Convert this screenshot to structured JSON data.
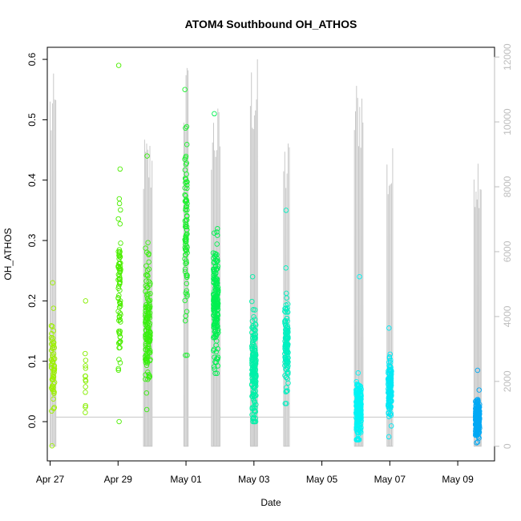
{
  "chart_data": {
    "type": "scatter",
    "title": "ATOM4 Southbound OH_ATHOS",
    "xlabel": "Date",
    "ylabel": "OH_ATHOS",
    "x_axis": {
      "type": "date",
      "range": [
        "2017-04-26T22:00",
        "2017-05-10T02:00"
      ],
      "ticks": [
        {
          "value": "2017-04-27",
          "label": "Apr 27"
        },
        {
          "value": "2017-04-29",
          "label": "Apr 29"
        },
        {
          "value": "2017-05-01",
          "label": "May 01"
        },
        {
          "value": "2017-05-03",
          "label": "May 03"
        },
        {
          "value": "2017-05-05",
          "label": "May 05"
        },
        {
          "value": "2017-05-07",
          "label": "May 07"
        },
        {
          "value": "2017-05-09",
          "label": "May 09"
        }
      ]
    },
    "y_axis_left": {
      "range": [
        -0.065,
        0.62
      ],
      "ticks": [
        0.0,
        0.1,
        0.2,
        0.3,
        0.4,
        0.5,
        0.6
      ],
      "tick_labels": [
        "0.0",
        "0.1",
        "0.2",
        "0.3",
        "0.4",
        "0.5",
        "0.6"
      ]
    },
    "y_axis_right": {
      "description": "secondary axis (altitude trace, grey)",
      "range": [
        -450,
        12300
      ],
      "ticks": [
        0,
        2000,
        4000,
        6000,
        8000,
        10000,
        12000
      ],
      "tick_labels": [
        "0",
        "2000",
        "4000",
        "6000",
        "8000",
        "10000",
        "12000"
      ],
      "color": "#bdbdbd"
    },
    "grid": false,
    "legend": "none",
    "flights": [
      {
        "center": "2017-04-27T02:00",
        "spread_h": 2.0,
        "y_mean": 0.09,
        "y_sd": 0.05,
        "n": 60,
        "y_min": -0.04,
        "y_max": 0.23,
        "color": "#9cf000",
        "alt_top": 11500
      },
      {
        "center": "2017-04-28T01:00",
        "spread_h": 0.5,
        "y_mean": 0.07,
        "y_sd": 0.04,
        "n": 14,
        "y_min": 0.015,
        "y_max": 0.2,
        "color": "#86ee00",
        "alt_top": 0
      },
      {
        "center": "2017-04-29T01:00",
        "spread_h": 1.5,
        "y_mean": 0.22,
        "y_sd": 0.09,
        "n": 80,
        "y_min": 0.0,
        "y_max": 0.59,
        "color": "#4cee00",
        "alt_top": 0
      },
      {
        "center": "2017-04-29T21:00",
        "spread_h": 3.0,
        "y_mean": 0.16,
        "y_sd": 0.07,
        "n": 150,
        "y_min": 0.02,
        "y_max": 0.44,
        "color": "#3aef10",
        "alt_top": 9700
      },
      {
        "center": "2017-05-01T00:00",
        "spread_h": 1.5,
        "y_mean": 0.3,
        "y_sd": 0.11,
        "n": 90,
        "y_min": 0.11,
        "y_max": 0.55,
        "color": "#1ef030",
        "alt_top": 12000
      },
      {
        "center": "2017-05-01T21:00",
        "spread_h": 3.0,
        "y_mean": 0.2,
        "y_sd": 0.07,
        "n": 180,
        "y_min": 0.08,
        "y_max": 0.51,
        "color": "#00f050",
        "alt_top": 10600
      },
      {
        "center": "2017-05-03T00:00",
        "spread_h": 2.5,
        "y_mean": 0.09,
        "y_sd": 0.06,
        "n": 170,
        "y_min": 0.0,
        "y_max": 0.24,
        "color": "#00f0a8",
        "alt_top": 12000
      },
      {
        "center": "2017-05-03T23:00",
        "spread_h": 2.0,
        "y_mean": 0.13,
        "y_sd": 0.05,
        "n": 130,
        "y_min": 0.03,
        "y_max": 0.35,
        "color": "#00f0c0",
        "alt_top": 9600
      },
      {
        "center": "2017-05-06T02:00",
        "spread_h": 3.0,
        "y_mean": 0.02,
        "y_sd": 0.03,
        "n": 240,
        "y_min": -0.03,
        "y_max": 0.24,
        "color": "#00f4f4",
        "alt_top": 11500
      },
      {
        "center": "2017-05-07T00:00",
        "spread_h": 2.0,
        "y_mean": 0.06,
        "y_sd": 0.035,
        "n": 130,
        "y_min": -0.025,
        "y_max": 0.155,
        "color": "#00e8f4",
        "alt_top": 9300
      },
      {
        "center": "2017-05-09T14:00",
        "spread_h": 2.5,
        "y_mean": 0.005,
        "y_sd": 0.022,
        "n": 200,
        "y_min": -0.035,
        "y_max": 0.085,
        "color": "#00a8f4",
        "alt_top": 9400
      }
    ]
  }
}
